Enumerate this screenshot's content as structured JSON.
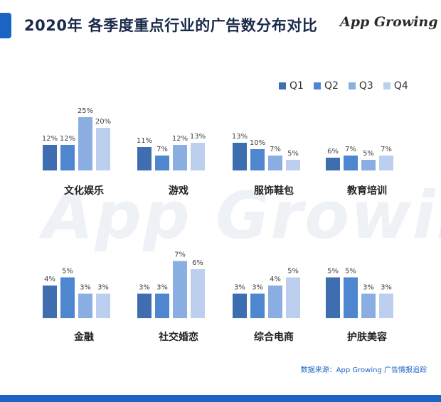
{
  "header": {
    "title": "2020年 各季度重点行业的广告数分布对比",
    "logo_text": "App Growing"
  },
  "footer": {
    "source": "数据来源：App Growing 广告情报追踪"
  },
  "colors": {
    "accent": "#1b64c4",
    "q1": "#3e6db0",
    "q2": "#4f86d0",
    "q3": "#8aaee2",
    "q4": "#bccfee"
  },
  "chart_data": {
    "type": "bar",
    "series_labels": [
      "Q1",
      "Q2",
      "Q3",
      "Q4"
    ],
    "legend_position": "top-right",
    "value_unit": "%",
    "panels": [
      {
        "category": "文化娱乐",
        "values": [
          12,
          12,
          25,
          20
        ]
      },
      {
        "category": "游戏",
        "values": [
          11,
          7,
          12,
          13
        ]
      },
      {
        "category": "服饰鞋包",
        "values": [
          13,
          10,
          7,
          5
        ]
      },
      {
        "category": "教育培训",
        "values": [
          6,
          7,
          5,
          7
        ]
      },
      {
        "category": "金融",
        "values": [
          4,
          5,
          3,
          3
        ]
      },
      {
        "category": "社交婚恋",
        "values": [
          3,
          3,
          7,
          6
        ]
      },
      {
        "category": "综合电商",
        "values": [
          3,
          3,
          4,
          5
        ]
      },
      {
        "category": "护肤美容",
        "values": [
          5,
          5,
          3,
          3
        ]
      }
    ]
  }
}
